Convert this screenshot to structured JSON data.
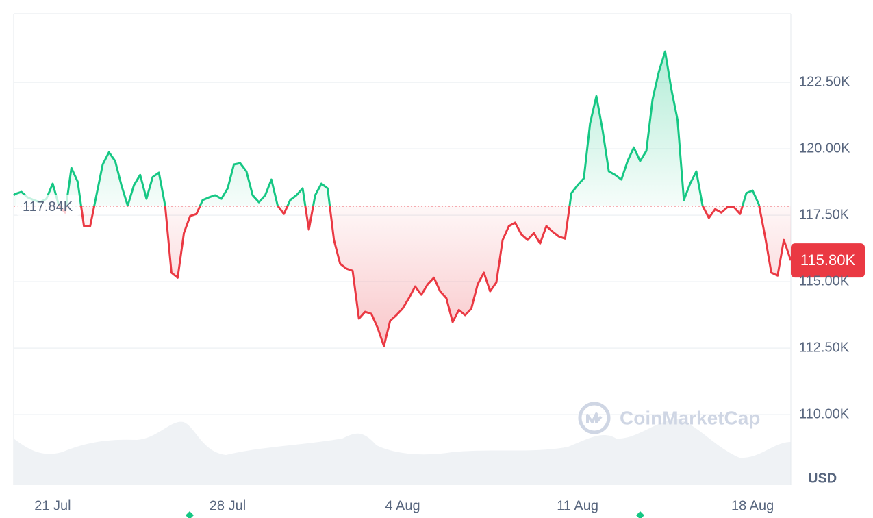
{
  "chart_data": {
    "type": "line",
    "x": [
      19.44,
      19.5,
      19.75,
      20,
      20.25,
      20.5,
      20.75,
      21,
      21.25,
      21.5,
      21.75,
      22,
      22.25,
      22.5,
      22.75,
      23,
      23.25,
      23.5,
      23.75,
      24,
      24.25,
      24.5,
      24.75,
      25,
      25.25,
      25.5,
      25.75,
      26,
      26.25,
      26.5,
      26.75,
      27,
      27.25,
      27.5,
      27.75,
      28,
      28.25,
      28.5,
      28.75,
      29,
      29.25,
      29.5,
      29.75,
      30,
      30.25,
      30.5,
      30.75,
      31,
      31.25,
      31.5,
      31.75,
      32,
      32.25,
      32.5,
      32.75,
      33,
      33.25,
      33.5,
      33.75,
      34,
      34.25,
      34.5,
      34.75,
      35,
      35.25,
      35.5,
      35.75,
      36,
      36.25,
      36.5,
      36.75,
      37,
      37.25,
      37.5,
      37.75,
      38,
      38.25,
      38.5,
      38.75,
      39,
      39.25,
      39.5,
      39.75,
      40,
      40.25,
      40.5,
      40.75,
      41,
      41.25,
      41.5,
      41.75,
      42,
      42.25,
      42.5,
      42.75,
      43,
      43.25,
      43.5,
      43.75,
      44,
      44.25,
      44.5,
      44.75,
      45,
      45.25,
      45.5,
      45.75,
      46,
      46.25,
      46.5,
      46.75,
      47,
      47.25,
      47.5,
      47.75,
      48,
      48.25,
      48.5,
      48.75,
      49,
      49.25,
      49.5,
      49.75,
      50,
      50.25,
      50.53
    ],
    "values": [
      118.25,
      118.3,
      118.38,
      118.17,
      118.07,
      117.99,
      118.12,
      118.69,
      117.86,
      117.6,
      119.28,
      118.76,
      117.09,
      117.09,
      118.25,
      119.41,
      119.87,
      119.54,
      118.63,
      117.86,
      118.63,
      119.02,
      118.12,
      118.94,
      119.1,
      117.86,
      115.34,
      115.15,
      116.83,
      117.47,
      117.55,
      118.07,
      118.17,
      118.25,
      118.12,
      118.51,
      119.41,
      119.46,
      119.15,
      118.25,
      117.99,
      118.25,
      118.84,
      117.86,
      117.55,
      118.07,
      118.25,
      118.51,
      116.96,
      118.25,
      118.69,
      118.51,
      116.57,
      115.67,
      115.49,
      115.41,
      113.61,
      113.87,
      113.79,
      113.27,
      112.58,
      113.53,
      113.74,
      113.99,
      114.38,
      114.82,
      114.51,
      114.9,
      115.15,
      114.64,
      114.38,
      113.48,
      113.94,
      113.74,
      113.99,
      114.9,
      115.34,
      114.64,
      114.97,
      116.57,
      117.09,
      117.22,
      116.78,
      116.57,
      116.83,
      116.44,
      117.09,
      116.88,
      116.7,
      116.62,
      118.33,
      118.63,
      118.89,
      120.95,
      121.98,
      120.7,
      119.15,
      119.02,
      118.84,
      119.54,
      120.05,
      119.54,
      119.92,
      121.86,
      122.89,
      123.66,
      122.24,
      121.08,
      118.07,
      118.69,
      119.15,
      117.86,
      117.4,
      117.73,
      117.6,
      117.81,
      117.81,
      117.55,
      118.33,
      118.43,
      117.91,
      116.7,
      115.34,
      115.23,
      116.57,
      115.8
    ],
    "xlim": [
      19.44,
      50.53
    ],
    "xticks": [
      {
        "value": 21,
        "label": "21 Jul"
      },
      {
        "value": 28,
        "label": "28 Jul"
      },
      {
        "value": 35,
        "label": "4 Aug"
      },
      {
        "value": 42,
        "label": "11 Aug"
      },
      {
        "value": 49,
        "label": "18 Aug"
      }
    ],
    "ylim": [
      107.35,
      125.08
    ],
    "yticks": [
      {
        "value": 110,
        "label": "110.00K"
      },
      {
        "value": 112.5,
        "label": "112.50K"
      },
      {
        "value": 115,
        "label": "115.00K"
      },
      {
        "value": 117.5,
        "label": "117.50K"
      },
      {
        "value": 120,
        "label": "120.00K"
      },
      {
        "value": 122.5,
        "label": "122.50K"
      }
    ],
    "baseline": {
      "value": 117.84,
      "label": "117.84K"
    },
    "last_price": {
      "value": 115.8,
      "label": "115.80K"
    },
    "y_unit": "USD",
    "watermark": "CoinMarketCap",
    "up_color": "#16c784",
    "down_color": "#ea3943",
    "grid": true
  }
}
